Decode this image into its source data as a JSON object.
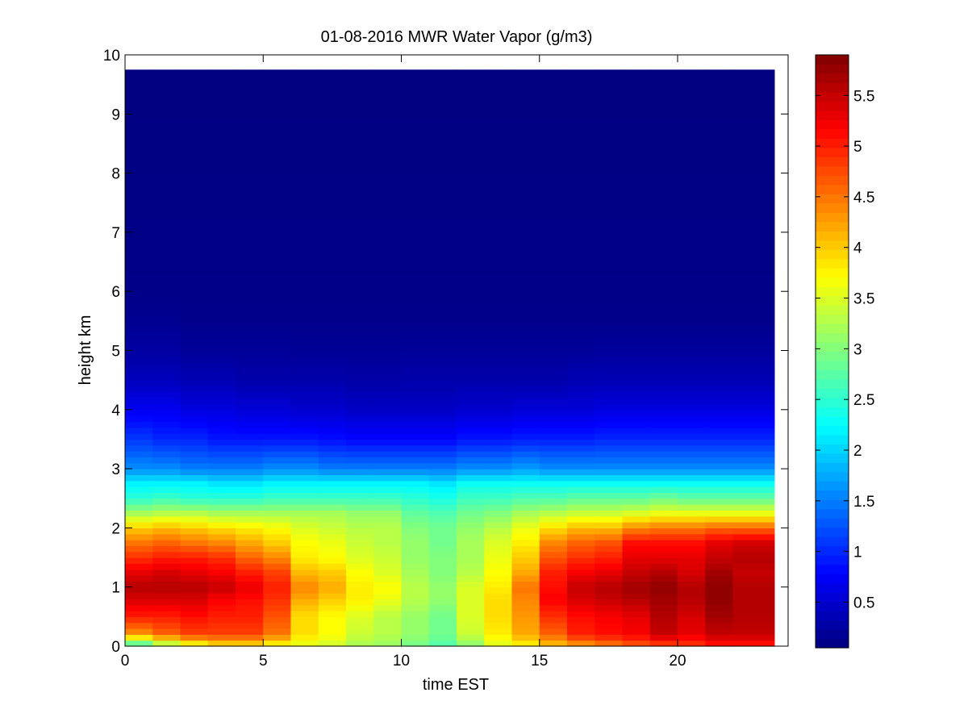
{
  "chart_data": {
    "type": "heatmap",
    "title": "01-08-2016 MWR Water Vapor (g/m3)",
    "xlabel": "time EST",
    "ylabel": "height km",
    "xlim": [
      0,
      24
    ],
    "ylim": [
      0,
      10
    ],
    "x_ticks": [
      0,
      5,
      10,
      15,
      20
    ],
    "y_ticks": [
      0,
      1,
      2,
      3,
      4,
      5,
      6,
      7,
      8,
      9,
      10
    ],
    "colormap": "jet",
    "colorbar": {
      "min": 0.05,
      "max": 5.9,
      "ticks": [
        0.5,
        1,
        1.5,
        2,
        2.5,
        3,
        3.5,
        4,
        4.5,
        5,
        5.5
      ]
    },
    "x_edges": [
      0,
      1,
      2,
      3,
      4,
      5,
      6,
      7,
      8,
      9,
      10,
      11,
      12,
      13,
      14,
      15,
      16,
      17,
      18,
      19,
      20,
      21,
      22,
      23.5
    ],
    "profile_heights_km": [
      0.0,
      0.2,
      0.5,
      0.8,
      1.0,
      1.25,
      1.5,
      1.75,
      2.0,
      2.25,
      2.5,
      2.75,
      3.0,
      3.5,
      4.0,
      4.5,
      5.0,
      5.5,
      6.0,
      9.75
    ],
    "moisture_top_km": 9.75,
    "time_hours": [
      0,
      1,
      2,
      3,
      4,
      5,
      6,
      7,
      8,
      9,
      10,
      11,
      12,
      13,
      14,
      15,
      16,
      17,
      18,
      19,
      20,
      21,
      22
    ],
    "profiles_g_m3": [
      [
        2.4,
        4.3,
        5.0,
        5.4,
        5.6,
        5.3,
        4.9,
        4.5,
        4.0,
        3.2,
        2.5,
        2.2,
        1.6,
        1.1,
        0.7,
        0.4,
        0.25,
        0.15,
        0.1,
        0.05
      ],
      [
        3.0,
        4.6,
        5.0,
        5.4,
        5.6,
        5.4,
        5.0,
        4.6,
        4.1,
        3.3,
        2.6,
        2.2,
        1.6,
        1.0,
        0.7,
        0.4,
        0.25,
        0.15,
        0.1,
        0.05
      ],
      [
        3.5,
        4.8,
        5.1,
        5.4,
        5.6,
        5.3,
        5.0,
        4.5,
        4.0,
        3.3,
        2.5,
        2.2,
        1.5,
        1.0,
        0.6,
        0.35,
        0.2,
        0.12,
        0.1,
        0.05
      ],
      [
        3.8,
        4.8,
        5.0,
        5.2,
        5.5,
        5.2,
        4.9,
        4.4,
        3.9,
        3.2,
        2.5,
        2.1,
        1.5,
        0.9,
        0.6,
        0.35,
        0.2,
        0.12,
        0.1,
        0.05
      ],
      [
        3.8,
        4.8,
        5.0,
        5.1,
        5.3,
        5.0,
        4.6,
        4.2,
        3.8,
        3.2,
        2.5,
        2.1,
        1.5,
        0.9,
        0.55,
        0.3,
        0.2,
        0.12,
        0.1,
        0.05
      ],
      [
        3.6,
        4.5,
        4.7,
        4.9,
        5.0,
        4.8,
        4.4,
        4.0,
        3.7,
        3.2,
        2.6,
        2.2,
        1.6,
        0.9,
        0.55,
        0.3,
        0.2,
        0.12,
        0.1,
        0.05
      ],
      [
        3.5,
        3.9,
        3.9,
        4.2,
        4.4,
        4.1,
        3.8,
        3.7,
        3.5,
        3.2,
        2.6,
        2.2,
        1.6,
        0.9,
        0.5,
        0.3,
        0.18,
        0.12,
        0.1,
        0.05
      ],
      [
        3.4,
        3.7,
        3.7,
        4.0,
        4.2,
        4.0,
        3.7,
        3.6,
        3.4,
        3.2,
        2.6,
        2.2,
        1.5,
        0.85,
        0.5,
        0.3,
        0.18,
        0.12,
        0.1,
        0.05
      ],
      [
        3.2,
        3.4,
        3.5,
        3.8,
        3.8,
        3.7,
        3.5,
        3.4,
        3.3,
        3.1,
        2.6,
        2.2,
        1.5,
        0.8,
        0.45,
        0.28,
        0.18,
        0.12,
        0.1,
        0.05
      ],
      [
        3.1,
        3.3,
        3.3,
        3.6,
        3.7,
        3.5,
        3.4,
        3.3,
        3.3,
        3.1,
        2.6,
        2.2,
        1.5,
        0.8,
        0.45,
        0.28,
        0.18,
        0.12,
        0.1,
        0.05
      ],
      [
        2.9,
        3.1,
        3.1,
        3.3,
        3.3,
        3.2,
        3.1,
        3.1,
        3.0,
        2.8,
        2.5,
        2.2,
        1.5,
        0.8,
        0.45,
        0.3,
        0.2,
        0.12,
        0.1,
        0.05
      ],
      [
        2.7,
        2.9,
        2.9,
        3.1,
        3.1,
        3.0,
        3.0,
        2.9,
        2.9,
        2.7,
        2.4,
        2.1,
        1.5,
        0.8,
        0.45,
        0.3,
        0.2,
        0.12,
        0.1,
        0.05
      ],
      [
        3.0,
        3.4,
        3.5,
        3.5,
        3.5,
        3.3,
        3.2,
        3.2,
        3.1,
        2.9,
        2.6,
        2.3,
        1.6,
        0.9,
        0.5,
        0.3,
        0.2,
        0.12,
        0.1,
        0.05
      ],
      [
        3.5,
        3.8,
        3.9,
        3.9,
        3.8,
        3.7,
        3.6,
        3.5,
        3.3,
        3.0,
        2.6,
        2.3,
        1.6,
        0.9,
        0.5,
        0.3,
        0.2,
        0.12,
        0.1,
        0.05
      ],
      [
        3.7,
        4.2,
        4.3,
        4.4,
        4.5,
        4.2,
        4.0,
        3.8,
        3.6,
        3.2,
        2.7,
        2.3,
        1.7,
        0.95,
        0.55,
        0.3,
        0.2,
        0.12,
        0.1,
        0.05
      ],
      [
        4.0,
        4.6,
        4.9,
        5.2,
        5.1,
        5.0,
        4.7,
        4.4,
        3.9,
        3.3,
        2.7,
        2.3,
        1.6,
        0.95,
        0.55,
        0.3,
        0.2,
        0.12,
        0.1,
        0.05
      ],
      [
        4.2,
        5.0,
        5.1,
        5.4,
        5.5,
        5.2,
        4.9,
        4.6,
        4.1,
        3.4,
        2.8,
        2.3,
        1.6,
        0.95,
        0.55,
        0.35,
        0.2,
        0.12,
        0.1,
        0.05
      ],
      [
        4.4,
        5.1,
        5.2,
        5.5,
        5.6,
        5.3,
        5.0,
        4.7,
        4.1,
        3.4,
        2.8,
        2.3,
        1.6,
        1.0,
        0.6,
        0.35,
        0.22,
        0.12,
        0.1,
        0.05
      ],
      [
        4.6,
        5.2,
        5.3,
        5.6,
        5.7,
        5.5,
        5.3,
        5.1,
        4.4,
        3.5,
        2.8,
        2.3,
        1.6,
        1.0,
        0.6,
        0.35,
        0.22,
        0.12,
        0.1,
        0.05
      ],
      [
        4.7,
        5.5,
        5.6,
        5.7,
        5.8,
        5.6,
        5.3,
        5.1,
        4.5,
        3.6,
        2.9,
        2.3,
        1.6,
        1.0,
        0.6,
        0.35,
        0.22,
        0.12,
        0.1,
        0.05
      ],
      [
        4.8,
        5.3,
        5.4,
        5.6,
        5.6,
        5.4,
        5.3,
        5.1,
        4.5,
        3.6,
        2.8,
        2.3,
        1.6,
        1.0,
        0.6,
        0.35,
        0.22,
        0.12,
        0.1,
        0.05
      ],
      [
        5.0,
        5.5,
        5.7,
        5.8,
        5.8,
        5.7,
        5.5,
        5.3,
        4.6,
        3.6,
        2.8,
        2.3,
        1.6,
        1.0,
        0.6,
        0.35,
        0.22,
        0.12,
        0.1,
        0.05
      ],
      [
        5.0,
        5.5,
        5.6,
        5.6,
        5.6,
        5.5,
        5.6,
        5.4,
        4.6,
        3.6,
        2.8,
        2.3,
        1.6,
        1.0,
        0.6,
        0.35,
        0.22,
        0.12,
        0.1,
        0.05
      ]
    ]
  }
}
